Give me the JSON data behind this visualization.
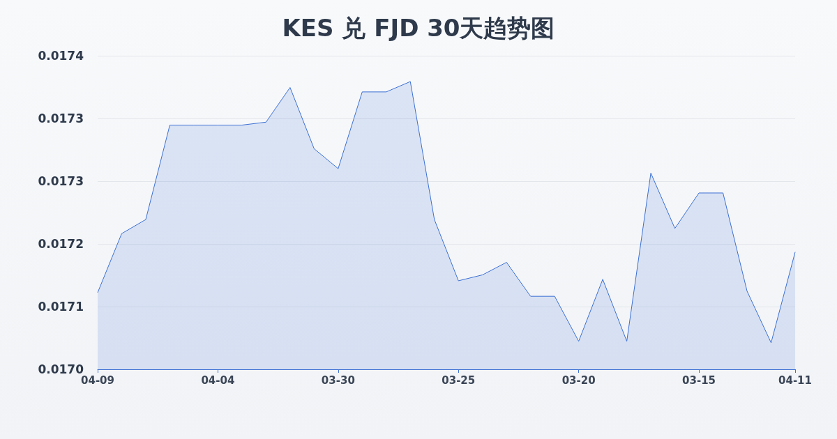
{
  "chart_data": {
    "type": "area",
    "title": "KES 兑 FJD 30天趋势图",
    "categories": [
      "04-09",
      null,
      null,
      null,
      null,
      "04-04",
      null,
      null,
      null,
      null,
      "03-30",
      null,
      null,
      null,
      null,
      "03-25",
      null,
      null,
      null,
      null,
      "03-20",
      null,
      null,
      null,
      null,
      "03-15",
      null,
      null,
      null,
      "04-11"
    ],
    "series": [
      {
        "color": "#3b6fd4",
        "values": [
          0.017104,
          0.017184,
          0.017203,
          0.017331,
          0.017331,
          0.017331,
          0.017331,
          0.017335,
          0.017382,
          0.017299,
          0.017272,
          0.017376,
          0.017376,
          0.01739,
          0.017203,
          0.01712,
          0.017128,
          0.017145,
          0.017099,
          0.017099,
          0.017038,
          0.017122,
          0.017038,
          0.017266,
          0.017191,
          0.017239,
          0.017239,
          0.017106,
          0.017036,
          0.017159
        ]
      }
    ],
    "ylim": [
      0.017,
      0.017425
    ],
    "yticks": [
      {
        "value": 0.017,
        "label": "0.0170"
      },
      {
        "value": 0.017085,
        "label": "0.0171"
      },
      {
        "value": 0.01717,
        "label": "0.0172"
      },
      {
        "value": 0.017255,
        "label": "0.0173"
      },
      {
        "value": 0.01734,
        "label": "0.0173"
      },
      {
        "value": 0.017425,
        "label": "0.0174"
      }
    ],
    "grid": "y",
    "marker": "none",
    "line_style": "solid"
  }
}
